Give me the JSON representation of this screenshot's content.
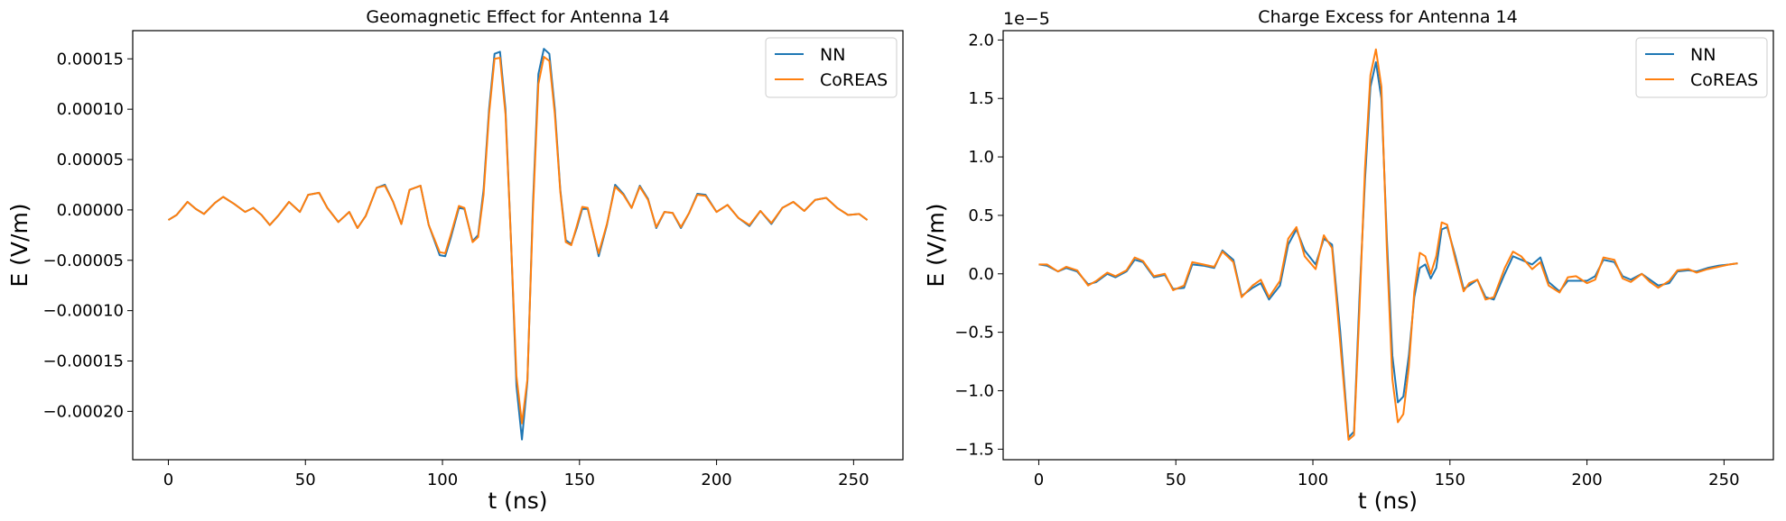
{
  "colors": {
    "NN": "#1f77b4",
    "CoREAS": "#ff7f0e"
  },
  "chart_data": [
    {
      "type": "line",
      "title": "Geomagnetic Effect for Antenna 14",
      "xlabel": "t (ns)",
      "ylabel": "E (V/m)",
      "y_offset_label": "",
      "xlim": [
        -13,
        268
      ],
      "ylim": [
        -0.000248,
        0.000178
      ],
      "xticks": [
        0,
        50,
        100,
        150,
        200,
        250
      ],
      "xtick_labels": [
        "0",
        "50",
        "100",
        "150",
        "200",
        "250"
      ],
      "yticks": [
        0.00015,
        0.0001,
        5e-05,
        0,
        -5e-05,
        -0.0001,
        -0.00015,
        -0.0002
      ],
      "ytick_labels": [
        "0.00015",
        "0.00010",
        "0.00005",
        "0.00000",
        "−0.00005",
        "−0.00010",
        "−0.00015",
        "−0.00020"
      ],
      "grid": false,
      "legend": "top-right",
      "series": [
        {
          "name": "NN",
          "x": [
            0,
            3,
            7,
            10,
            13,
            17,
            20,
            24,
            28,
            31,
            34,
            37,
            40,
            44,
            48,
            51,
            55,
            58,
            62,
            66,
            69,
            72,
            76,
            79,
            82,
            85,
            88,
            92,
            95,
            99,
            101,
            103,
            106,
            108,
            111,
            113,
            115,
            117,
            119,
            121,
            123,
            125,
            127,
            129,
            131,
            133,
            135,
            137,
            139,
            141,
            143,
            145,
            147,
            149,
            151,
            153,
            155,
            157,
            160,
            163,
            166,
            169,
            172,
            175,
            178,
            181,
            184,
            187,
            190,
            193,
            196,
            200,
            204,
            208,
            212,
            216,
            220,
            224,
            228,
            232,
            236,
            240,
            244,
            248,
            252,
            255
          ],
          "y": [
            -1e-05,
            -5e-06,
            8e-06,
            1e-06,
            -4e-06,
            7e-06,
            1.3e-05,
            6e-06,
            -2e-06,
            2e-06,
            -5e-06,
            -1.5e-05,
            -6e-06,
            8e-06,
            -2e-06,
            1.5e-05,
            1.7e-05,
            2e-06,
            -1.2e-05,
            -2e-06,
            -1.8e-05,
            -6e-06,
            2.2e-05,
            2.5e-05,
            8e-06,
            -1.4e-05,
            2e-05,
            2.4e-05,
            -1.5e-05,
            -4.5e-05,
            -4.6e-05,
            -2.8e-05,
            2e-06,
            1e-06,
            -3.1e-05,
            -2.5e-05,
            2e-05,
            0.0001,
            0.000155,
            0.000157,
            0.0001,
            -3e-05,
            -0.000175,
            -0.000228,
            -0.00017,
            5e-06,
            0.000135,
            0.00016,
            0.000155,
            0.0001,
            2e-05,
            -3e-05,
            -3.4e-05,
            -1.8e-05,
            1e-06,
            1e-06,
            -2.2e-05,
            -4.6e-05,
            -1.5e-05,
            2.5e-05,
            1.6e-05,
            2e-06,
            2.4e-05,
            1.1e-05,
            -1.8e-05,
            -2e-06,
            -3e-06,
            -1.8e-05,
            -3e-06,
            1.6e-05,
            1.5e-05,
            -2e-06,
            5e-06,
            -8e-06,
            -1.6e-05,
            -1e-06,
            -1.4e-05,
            2e-06,
            8e-06,
            -1e-06,
            1e-05,
            1.2e-05,
            2e-06,
            -5e-06,
            -4e-06,
            -1e-05
          ]
        },
        {
          "name": "CoREAS",
          "x": [
            0,
            3,
            7,
            10,
            13,
            17,
            20,
            24,
            28,
            31,
            34,
            37,
            40,
            44,
            48,
            51,
            55,
            58,
            62,
            66,
            69,
            72,
            76,
            79,
            82,
            85,
            88,
            92,
            95,
            99,
            101,
            103,
            106,
            108,
            111,
            113,
            115,
            117,
            119,
            121,
            123,
            125,
            127,
            129,
            131,
            133,
            135,
            137,
            139,
            141,
            143,
            145,
            147,
            149,
            151,
            153,
            155,
            157,
            160,
            163,
            166,
            169,
            172,
            175,
            178,
            181,
            184,
            187,
            190,
            193,
            196,
            200,
            204,
            208,
            212,
            216,
            220,
            224,
            228,
            232,
            236,
            240,
            244,
            248,
            252,
            255
          ],
          "y": [
            -1e-05,
            -5e-06,
            8e-06,
            1e-06,
            -4e-06,
            7e-06,
            1.3e-05,
            6e-06,
            -2e-06,
            2e-06,
            -5e-06,
            -1.5e-05,
            -6e-06,
            8e-06,
            -2e-06,
            1.5e-05,
            1.7e-05,
            2e-06,
            -1.2e-05,
            -2e-06,
            -1.8e-05,
            -6e-06,
            2.2e-05,
            2.4e-05,
            8e-06,
            -1.4e-05,
            2e-05,
            2.4e-05,
            -1.5e-05,
            -4.2e-05,
            -4.3e-05,
            -2.5e-05,
            4e-06,
            2e-06,
            -3.2e-05,
            -2.7e-05,
            1.5e-05,
            9.5e-05,
            0.00015,
            0.000151,
            9.5e-05,
            -3e-05,
            -0.000165,
            -0.000212,
            -0.000168,
            -2e-06,
            0.000125,
            0.000152,
            0.000148,
            9.5e-05,
            1.8e-05,
            -3.2e-05,
            -3.5e-05,
            -1.6e-05,
            3e-06,
            2e-06,
            -2.2e-05,
            -4.3e-05,
            -1.4e-05,
            2.3e-05,
            1.5e-05,
            2e-06,
            2.3e-05,
            1e-05,
            -1.7e-05,
            -2e-06,
            -3e-06,
            -1.7e-05,
            -3e-06,
            1.5e-05,
            1.4e-05,
            -2e-06,
            5e-06,
            -8e-06,
            -1.5e-05,
            -1e-06,
            -1.3e-05,
            2e-06,
            8e-06,
            -1e-06,
            1e-05,
            1.2e-05,
            2e-06,
            -5e-06,
            -4e-06,
            -1e-05
          ]
        }
      ]
    },
    {
      "type": "line",
      "title": "Charge Excess for Antenna 14",
      "xlabel": "t (ns)",
      "ylabel": "E (V/m)",
      "y_offset_label": "1e−5",
      "xlim": [
        -13,
        268
      ],
      "ylim": [
        -1.59,
        2.08
      ],
      "xticks": [
        0,
        50,
        100,
        150,
        200,
        250
      ],
      "xtick_labels": [
        "0",
        "50",
        "100",
        "150",
        "200",
        "250"
      ],
      "yticks": [
        2.0,
        1.5,
        1.0,
        0.5,
        0.0,
        -0.5,
        -1.0,
        -1.5
      ],
      "ytick_labels": [
        "2.0",
        "1.5",
        "1.0",
        "0.5",
        "0.0",
        "−0.5",
        "−1.0",
        "−1.5"
      ],
      "grid": false,
      "legend": "top-right",
      "series": [
        {
          "name": "NN",
          "x": [
            0,
            3,
            7,
            10,
            14,
            18,
            21,
            25,
            28,
            32,
            35,
            38,
            42,
            46,
            49,
            53,
            56,
            60,
            64,
            67,
            71,
            74,
            78,
            81,
            84,
            88,
            91,
            94,
            97,
            101,
            104,
            107,
            110,
            113,
            115,
            117,
            119,
            121,
            123,
            125,
            127,
            129,
            131,
            133,
            135,
            137,
            139,
            141,
            143,
            145,
            147,
            149,
            152,
            155,
            157,
            160,
            163,
            166,
            170,
            173,
            176,
            180,
            183,
            186,
            190,
            193,
            196,
            200,
            203,
            206,
            210,
            213,
            216,
            220,
            223,
            226,
            230,
            233,
            237,
            240,
            244,
            248,
            252,
            255
          ],
          "y": [
            0.08,
            0.07,
            0.02,
            0.05,
            0.02,
            -0.09,
            -0.07,
            0.0,
            -0.03,
            0.02,
            0.12,
            0.1,
            -0.03,
            -0.01,
            -0.13,
            -0.12,
            0.08,
            0.07,
            0.05,
            0.2,
            0.12,
            -0.19,
            -0.12,
            -0.08,
            -0.22,
            -0.1,
            0.25,
            0.38,
            0.2,
            0.08,
            0.3,
            0.25,
            -0.5,
            -1.4,
            -1.35,
            -0.2,
            0.8,
            1.6,
            1.81,
            1.5,
            0.3,
            -0.7,
            -1.1,
            -1.05,
            -0.7,
            -0.2,
            0.05,
            0.08,
            -0.04,
            0.05,
            0.38,
            0.4,
            0.15,
            -0.13,
            -0.1,
            -0.05,
            -0.2,
            -0.22,
            0.0,
            0.15,
            0.12,
            0.08,
            0.14,
            -0.07,
            -0.15,
            -0.06,
            -0.06,
            -0.06,
            -0.02,
            0.12,
            0.1,
            -0.02,
            -0.05,
            0.0,
            -0.05,
            -0.1,
            -0.08,
            0.02,
            0.03,
            0.02,
            0.05,
            0.07,
            0.08,
            0.09
          ]
        },
        {
          "name": "CoREAS",
          "x": [
            0,
            3,
            7,
            10,
            14,
            18,
            21,
            25,
            28,
            32,
            35,
            38,
            42,
            46,
            49,
            53,
            56,
            60,
            64,
            67,
            71,
            74,
            78,
            81,
            84,
            88,
            91,
            94,
            97,
            101,
            104,
            107,
            110,
            113,
            115,
            117,
            119,
            121,
            123,
            125,
            127,
            129,
            131,
            133,
            135,
            137,
            139,
            141,
            143,
            145,
            147,
            149,
            152,
            155,
            157,
            160,
            163,
            166,
            170,
            173,
            176,
            180,
            183,
            186,
            190,
            193,
            196,
            200,
            203,
            206,
            210,
            213,
            216,
            220,
            223,
            226,
            230,
            233,
            237,
            240,
            244,
            248,
            252,
            255
          ],
          "y": [
            0.08,
            0.08,
            0.02,
            0.06,
            0.03,
            -0.1,
            -0.06,
            0.01,
            -0.02,
            0.03,
            0.14,
            0.11,
            -0.02,
            0.0,
            -0.14,
            -0.1,
            0.1,
            0.08,
            0.06,
            0.19,
            0.1,
            -0.2,
            -0.1,
            -0.05,
            -0.2,
            -0.06,
            0.3,
            0.4,
            0.15,
            0.04,
            0.33,
            0.22,
            -0.6,
            -1.42,
            -1.38,
            -0.3,
            0.9,
            1.7,
            1.92,
            1.6,
            0.2,
            -0.9,
            -1.27,
            -1.2,
            -0.8,
            -0.15,
            0.18,
            0.15,
            0.0,
            0.15,
            0.44,
            0.42,
            0.12,
            -0.15,
            -0.08,
            -0.05,
            -0.22,
            -0.2,
            0.05,
            0.19,
            0.15,
            0.04,
            0.1,
            -0.1,
            -0.16,
            -0.03,
            -0.02,
            -0.08,
            -0.05,
            0.14,
            0.12,
            -0.04,
            -0.07,
            0.0,
            -0.07,
            -0.12,
            -0.06,
            0.03,
            0.04,
            0.01,
            0.04,
            0.06,
            0.08,
            0.09
          ]
        }
      ]
    }
  ]
}
